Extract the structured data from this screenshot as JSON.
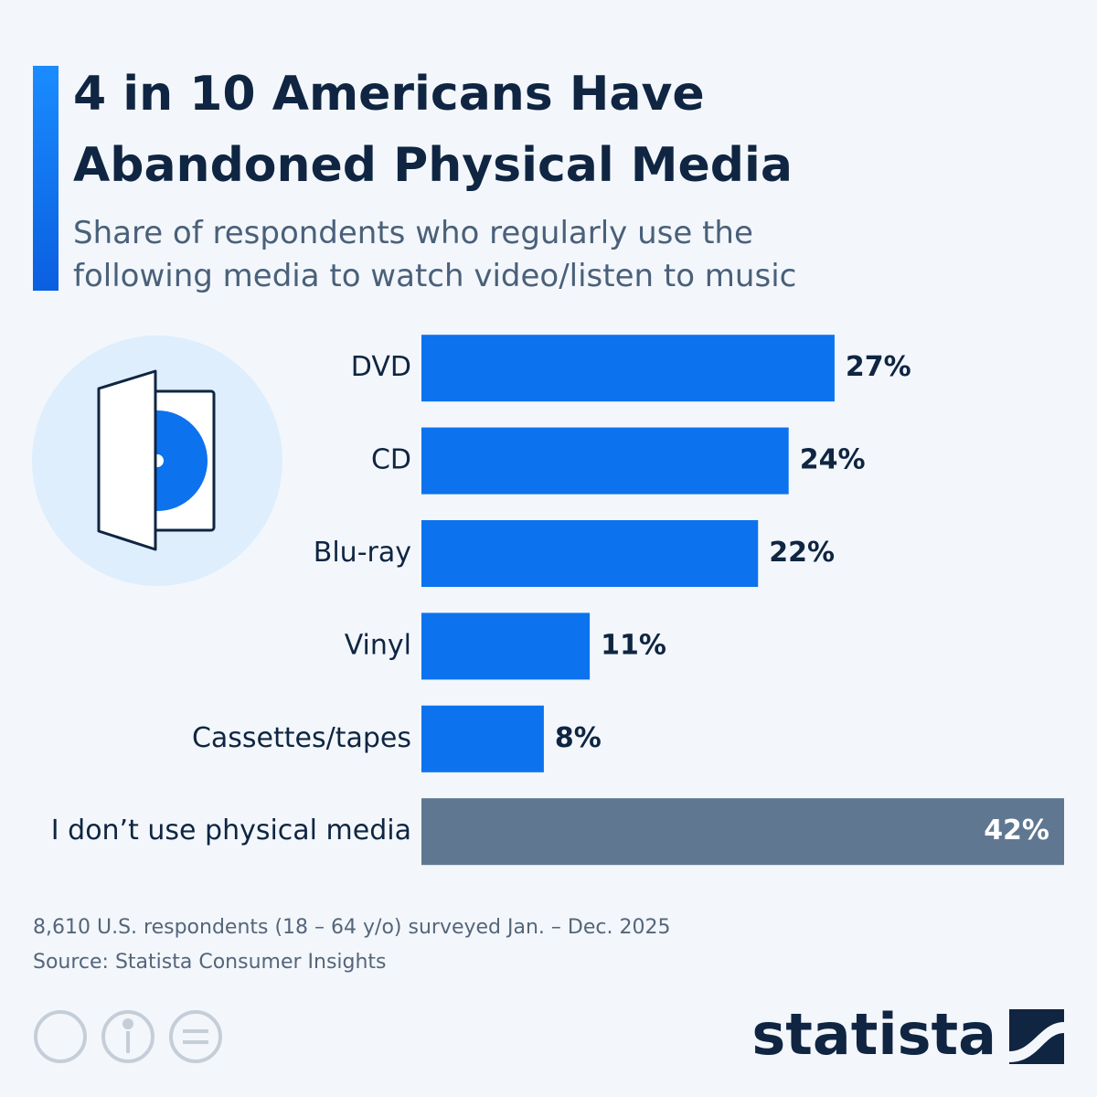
{
  "chart_data": {
    "type": "bar",
    "orientation": "horizontal",
    "title": "4 in 10 Americans Have Abandoned Physical Media",
    "subtitle": "Share of respondents who regularly use the following media to watch video/listen to music",
    "categories": [
      "DVD",
      "CD",
      "Blu-ray",
      "Vinyl",
      "Cassettes/tapes",
      "I don’t use physical media"
    ],
    "values": [
      27,
      24,
      22,
      11,
      8,
      42
    ],
    "value_labels": [
      "27%",
      "24%",
      "22%",
      "11%",
      "8%",
      "42%"
    ],
    "colors": [
      "#0d72ee",
      "#0d72ee",
      "#0d72ee",
      "#0d72ee",
      "#0d72ee",
      "#5f7790"
    ],
    "xlim": [
      0,
      42
    ],
    "footnote": "8,610 U.S. respondents (18 – 64 y/o) surveyed Jan. – Dec. 2025",
    "source": "Source: Statista Consumer Insights",
    "brand": "statista"
  }
}
